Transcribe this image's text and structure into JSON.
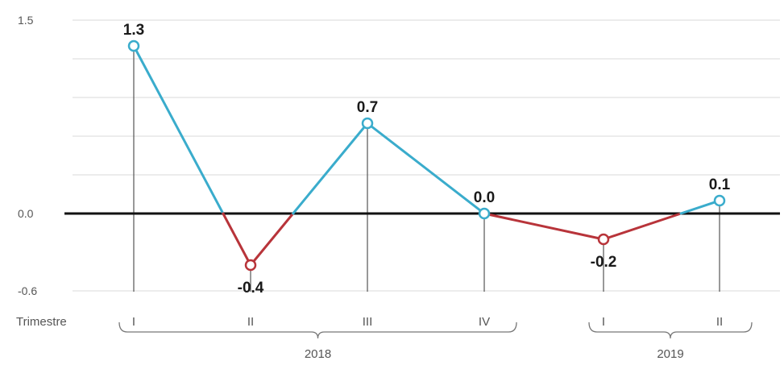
{
  "chart_data": {
    "type": "line",
    "title": "",
    "xlabel": "Trimestre",
    "ylabel": "",
    "ylim": [
      -0.6,
      1.5
    ],
    "yticks": [
      "1.5",
      "0.0",
      "-0.6"
    ],
    "ytick_values": [
      1.5,
      0.0,
      -0.6
    ],
    "categories": [
      "I",
      "II",
      "III",
      "IV",
      "I",
      "II"
    ],
    "years": [
      {
        "label": "2018",
        "from": 0,
        "to": 3
      },
      {
        "label": "2019",
        "from": 4,
        "to": 5
      }
    ],
    "values": [
      1.3,
      -0.4,
      0.7,
      0.0,
      -0.2,
      0.1
    ],
    "value_labels": [
      "1.3",
      "-0.4",
      "0.7",
      "0.0",
      "-0.2",
      "0.1"
    ],
    "grid": true,
    "colors": {
      "positive": "#3aaccc",
      "negative": "#b8343a",
      "zero_line": "#111111",
      "grid": "#d9d9d9",
      "drop_line": "#555555"
    }
  }
}
